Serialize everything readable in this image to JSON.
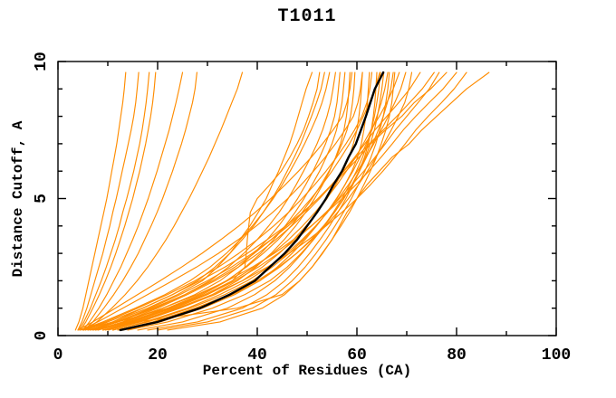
{
  "chart_data": {
    "type": "line",
    "title": "T1011",
    "xlabel": "Percent of Residues (CA)",
    "ylabel": "Distance Cutoff, A",
    "xlim": [
      0,
      100
    ],
    "ylim": [
      0,
      10
    ],
    "grid": false,
    "legend": "none",
    "x_major_ticks": [
      0,
      20,
      40,
      60,
      80,
      100
    ],
    "x_tick_labels": [
      "0",
      "20",
      "40",
      "60",
      "80",
      "100"
    ],
    "x_minor_ticks": [
      10,
      30,
      50,
      70,
      90
    ],
    "y_major_ticks": [
      0,
      5,
      10
    ],
    "y_tick_labels": [
      "0",
      "5",
      "10"
    ],
    "y_minor_ticks": [
      1,
      2,
      3,
      4,
      6,
      7,
      8,
      9
    ],
    "colors": {
      "model": "#ff8c00",
      "highlight": "#000000",
      "axis": "#000000",
      "background": "#ffffff"
    },
    "cutoffs": [
      0.2,
      0.5,
      1,
      1.5,
      2,
      2.5,
      3,
      3.5,
      4,
      4.5,
      5,
      5.5,
      6,
      6.5,
      7,
      7.5,
      8,
      8.5,
      9,
      9.6
    ],
    "series": [
      {
        "role": "model",
        "pct": [
          3.5,
          4.2,
          5,
          5.6,
          6.2,
          6.8,
          7.4,
          8,
          8.6,
          9.2,
          9.8,
          10.3,
          10.8,
          11.3,
          11.8,
          12.2,
          12.6,
          13,
          13.3,
          13.6
        ]
      },
      {
        "role": "model",
        "pct": [
          4,
          4.8,
          5.8,
          6.6,
          7.4,
          8.2,
          9,
          9.7,
          10.4,
          11,
          11.7,
          12.3,
          12.9,
          13.5,
          14.1,
          14.7,
          15.2,
          15.6,
          15.9,
          16.2
        ]
      },
      {
        "role": "model",
        "pct": [
          4.2,
          5.2,
          6.5,
          7.6,
          8.7,
          9.7,
          10.6,
          11.5,
          12.3,
          13,
          13.8,
          14.5,
          15.2,
          15.8,
          16.4,
          16.9,
          17.3,
          17.7,
          18,
          18.3
        ]
      },
      {
        "role": "model",
        "pct": [
          4.5,
          5.6,
          7,
          8.3,
          9.5,
          10.6,
          11.6,
          12.5,
          13.4,
          14.2,
          15,
          15.7,
          16.4,
          17,
          17.6,
          18.1,
          18.6,
          19,
          19.3,
          19.6
        ]
      },
      {
        "role": "model",
        "pct": [
          5,
          6.3,
          8.2,
          9.8,
          11.2,
          12.6,
          13.8,
          15,
          16.1,
          17.1,
          18.1,
          19,
          19.9,
          20.7,
          21.5,
          22.3,
          23,
          23.7,
          24.3,
          25
        ]
      },
      {
        "role": "model",
        "pct": [
          5.2,
          7,
          9.2,
          11.2,
          13,
          14.6,
          16.1,
          17.4,
          18.7,
          19.9,
          21,
          22,
          23,
          23.9,
          24.8,
          25.6,
          26.3,
          27,
          27.5,
          27.9
        ]
      },
      {
        "role": "model",
        "pct": [
          5.5,
          7.8,
          10.8,
          13.5,
          15.9,
          18,
          19.9,
          21.7,
          23.3,
          24.8,
          26.3,
          27.7,
          29,
          30.3,
          31.5,
          32.7,
          33.8,
          34.9,
          36,
          37
        ]
      },
      {
        "role": "model",
        "pct": [
          5,
          11,
          18,
          24,
          29,
          32,
          34.5,
          36.5,
          38.5,
          40.2,
          41.8,
          43,
          44.3,
          45.4,
          46.5,
          47.4,
          48.2,
          49,
          49.8,
          51
        ]
      },
      {
        "role": "model",
        "pct": [
          6,
          12,
          22,
          30,
          35,
          37.5,
          37.8,
          38,
          38.3,
          38.6,
          40,
          42.5,
          44.8,
          46.5,
          48,
          49.3,
          50.3,
          51.2,
          52,
          52.5
        ]
      },
      {
        "role": "model",
        "pct": [
          5.5,
          10,
          17,
          23,
          28,
          31.5,
          34.5,
          37,
          39.3,
          41.2,
          43,
          44.6,
          46,
          47.4,
          48.7,
          49.8,
          50.9,
          51.9,
          52.8,
          53.5
        ]
      },
      {
        "role": "model",
        "pct": [
          4.5,
          9,
          15.5,
          21.5,
          26.5,
          30.5,
          33.8,
          36.6,
          39,
          41.2,
          43.2,
          45,
          46.6,
          48.1,
          49.5,
          50.8,
          52,
          53,
          53.8,
          54.5
        ]
      },
      {
        "role": "model",
        "pct": [
          6.5,
          12,
          19.5,
          25.5,
          30.5,
          34.2,
          37.3,
          40,
          42.3,
          44.4,
          46.2,
          47.8,
          49.3,
          50.7,
          52,
          53.1,
          54,
          54.7,
          55.2,
          55.7
        ]
      },
      {
        "role": "model",
        "pct": [
          7,
          13.5,
          21,
          27.5,
          32.5,
          36.2,
          39.3,
          42,
          44.3,
          46.3,
          48.1,
          49.7,
          51.2,
          52.5,
          53.7,
          54.7,
          55.5,
          56,
          56.3,
          56.6
        ]
      },
      {
        "role": "model",
        "pct": [
          8,
          14.5,
          22.5,
          29,
          34,
          37.6,
          40.7,
          43.3,
          45.6,
          47.6,
          49.4,
          51,
          52.5,
          53.8,
          55,
          55.9,
          56.5,
          57,
          57.3,
          57.6
        ]
      },
      {
        "role": "model",
        "pct": [
          10,
          16.5,
          24.5,
          31,
          36,
          39.7,
          42.8,
          45.4,
          47.7,
          49.7,
          51.5,
          53.1,
          54.5,
          55.7,
          56.7,
          57.4,
          57.9,
          58.2,
          58.4,
          58.6
        ]
      },
      {
        "role": "model",
        "pct": [
          7.5,
          14,
          22,
          28.5,
          33.8,
          37.8,
          41.2,
          44.2,
          46.8,
          49,
          51,
          52.8,
          54.4,
          55.8,
          57,
          58,
          58.7,
          59.1,
          59.4,
          59.6
        ]
      },
      {
        "role": "model",
        "pct": [
          9,
          16,
          24.5,
          31.5,
          37,
          41,
          44.4,
          47.3,
          49.8,
          52,
          54,
          55.7,
          57.2,
          58.4,
          59.3,
          60,
          60.4,
          60.7,
          60.9,
          61.1
        ]
      },
      {
        "role": "model",
        "pct": [
          11,
          18,
          26.5,
          33.5,
          39,
          43,
          46.4,
          49.3,
          51.8,
          54,
          56,
          57.6,
          59,
          60.1,
          60.9,
          61.4,
          61.8,
          62.1,
          62.3,
          62.5
        ]
      },
      {
        "role": "model",
        "pct": [
          12,
          19.5,
          28,
          35,
          40.5,
          44.5,
          47.9,
          50.8,
          53.3,
          55.5,
          57.4,
          59,
          60.4,
          61.5,
          62.3,
          62.9,
          63.3,
          63.6,
          63.8,
          64
        ]
      },
      {
        "role": "model",
        "pct": [
          16,
          25,
          34,
          39.5,
          43.5,
          46.5,
          49,
          51.3,
          53.4,
          55.3,
          57,
          58.5,
          59.9,
          61.1,
          62.1,
          62.9,
          63.5,
          64,
          64.4,
          64.7
        ]
      },
      {
        "role": "model",
        "pct": [
          18,
          28,
          37,
          42,
          45.5,
          48.2,
          50.5,
          52.6,
          54.5,
          56.2,
          57.8,
          59.2,
          60.5,
          61.7,
          62.7,
          63.5,
          64.1,
          64.6,
          65,
          65.4
        ]
      },
      {
        "role": "model",
        "pct": [
          20,
          30,
          39,
          43.8,
          47,
          49.6,
          51.8,
          53.8,
          55.6,
          57.3,
          58.9,
          60.3,
          61.6,
          62.8,
          63.8,
          64.6,
          65.3,
          65.8,
          66.2,
          66.5
        ]
      },
      {
        "role": "model",
        "pct": [
          22,
          32.5,
          41,
          45.5,
          48.5,
          51,
          53.1,
          55,
          56.8,
          58.5,
          60,
          61.4,
          62.7,
          63.9,
          64.9,
          65.8,
          66.5,
          67,
          67.3,
          67.6
        ]
      },
      {
        "role": "model",
        "pct": [
          6,
          11.5,
          19,
          25.5,
          31,
          35.5,
          39.4,
          42.8,
          45.8,
          48.4,
          50.8,
          53,
          55,
          56.8,
          58.5,
          60,
          61.3,
          62.5,
          63.6,
          64.6
        ]
      },
      {
        "role": "model",
        "pct": [
          5,
          9.5,
          16,
          22,
          27.5,
          32.2,
          36.3,
          40,
          43.3,
          46.3,
          49,
          51.5,
          53.8,
          55.9,
          57.8,
          59.5,
          61,
          62,
          62.6,
          63
        ]
      },
      {
        "role": "model",
        "pct": [
          4.5,
          8,
          13,
          18,
          23,
          27.8,
          32.2,
          36.2,
          39.8,
          43.1,
          46.1,
          48.8,
          51.3,
          53.6,
          55.7,
          57.6,
          59.3,
          60.2,
          60.7,
          61.1
        ]
      },
      {
        "role": "model",
        "pct": [
          4,
          7,
          11.5,
          16,
          20.5,
          24.8,
          28.9,
          32.7,
          36.3,
          39.6,
          42.7,
          45.6,
          48.3,
          50.8,
          53.1,
          55.2,
          57.1,
          58,
          58.6,
          59
        ]
      },
      {
        "role": "model",
        "pct": [
          13,
          20.5,
          29,
          35.5,
          40.5,
          44,
          47,
          49.6,
          51.9,
          54,
          55.9,
          57.6,
          59.2,
          60.6,
          61.9,
          63,
          64,
          64.9,
          65.6,
          66.2
        ]
      },
      {
        "role": "model",
        "pct": [
          14,
          22,
          31,
          37.5,
          42.5,
          46,
          48.8,
          51.3,
          53.5,
          55.5,
          57.3,
          59,
          60.5,
          61.9,
          63.2,
          64.3,
          65.3,
          66.1,
          66.8,
          67.3
        ]
      },
      {
        "role": "model",
        "pct": [
          9,
          15,
          23,
          29.5,
          35,
          39.4,
          43.1,
          46.3,
          49.1,
          51.6,
          53.9,
          56,
          57.9,
          59.7,
          61.3,
          62.8,
          64.5,
          66,
          67.3,
          68.5
        ]
      },
      {
        "role": "model",
        "pct": [
          11,
          17.5,
          26,
          32.5,
          38,
          42.3,
          45.9,
          49,
          51.7,
          54.1,
          56.3,
          58.3,
          60.1,
          61.8,
          63.4,
          64.9,
          66.3,
          67.6,
          68.8,
          69.8
        ]
      },
      {
        "role": "model",
        "pct": [
          12.5,
          19,
          27.5,
          34.5,
          40,
          44.3,
          47.9,
          51,
          53.7,
          56.1,
          58.3,
          60.3,
          62.1,
          63.8,
          65.4,
          66.9,
          68.3,
          69.6,
          70.4,
          71
        ]
      },
      {
        "role": "model",
        "pct": [
          8,
          13,
          20,
          26,
          31.5,
          36.2,
          40.2,
          43.7,
          46.9,
          49.8,
          52.5,
          55,
          57.3,
          59.5,
          61.6,
          63.6,
          66,
          68.4,
          70.6,
          72.7
        ]
      },
      {
        "role": "model",
        "pct": [
          7,
          12,
          18.5,
          24.5,
          30,
          34.8,
          39,
          42.8,
          46.2,
          49.3,
          52.2,
          54.9,
          57.4,
          59.8,
          62.5,
          65.3,
          68,
          70.6,
          73.1,
          75.5
        ]
      },
      {
        "role": "model",
        "pct": [
          10,
          16,
          23.5,
          30,
          35.5,
          40.2,
          44.2,
          47.7,
          50.9,
          53.8,
          56.5,
          59,
          61.4,
          63.6,
          65.7,
          67.7,
          70,
          72.3,
          74.5,
          76.5
        ]
      },
      {
        "role": "model",
        "pct": [
          6.5,
          11,
          17,
          23,
          28.5,
          33.5,
          38,
          42,
          45.7,
          49.1,
          52.2,
          55.1,
          57.8,
          60.4,
          62.8,
          65.7,
          69,
          71.5,
          74.8,
          78
        ]
      },
      {
        "role": "model",
        "pct": [
          7.5,
          13,
          21,
          28,
          34,
          39,
          43.4,
          47.3,
          50.8,
          54,
          57,
          59.8,
          62.4,
          64.8,
          67.1,
          69.3,
          71.8,
          74.5,
          77.3,
          80
        ]
      },
      {
        "role": "model",
        "pct": [
          9.5,
          15.5,
          24,
          31,
          37,
          42,
          46.4,
          50.3,
          53.8,
          57,
          60,
          62.7,
          65.2,
          67.5,
          69.7,
          71.8,
          74.3,
          77,
          79.5,
          82
        ]
      },
      {
        "role": "model",
        "pct": [
          10,
          16,
          36,
          45,
          48.5,
          51,
          53,
          55,
          56.5,
          58,
          60,
          62,
          64.5,
          67,
          70.5,
          73,
          76,
          79,
          82,
          86.5
        ]
      },
      {
        "role": "highlight",
        "pct": [
          12.5,
          20,
          28.5,
          34.5,
          39.5,
          42.5,
          45.5,
          48,
          50,
          52,
          53.8,
          55.3,
          57,
          58.3,
          59.8,
          60.8,
          61.8,
          62.7,
          63.6,
          65.3
        ]
      }
    ]
  }
}
